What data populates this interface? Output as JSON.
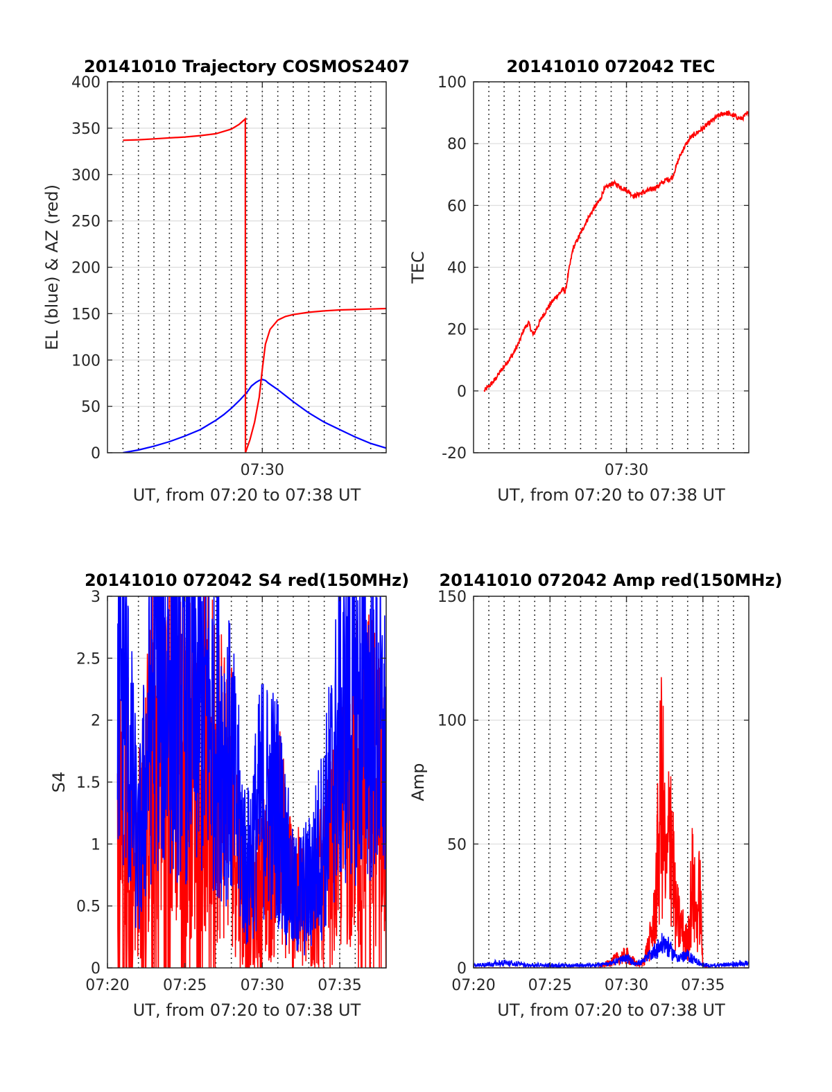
{
  "colors": {
    "el": "#0000ff",
    "az": "#ff0000",
    "tec": "#ff0000",
    "red_ch": "#ff0000",
    "blue_ch": "#0000ff",
    "grid": "#dcdcdc",
    "vgrid": "#000000"
  },
  "chart_data": [
    {
      "type": "line",
      "title": "20141010 Trajectory COSMOS2407",
      "xlabel": "UT, from 07:20 to 07:38 UT",
      "ylabel": "EL (blue) & AZ (red)",
      "xlim": [
        "07:20",
        "07:38"
      ],
      "ylim": [
        0,
        400
      ],
      "yticks": [
        0,
        50,
        100,
        150,
        200,
        250,
        300,
        350,
        400
      ],
      "xticks": [
        {
          "t": 10,
          "label": "07:30"
        }
      ],
      "grid": true,
      "series": [
        {
          "x": [
            1,
            2,
            3,
            4,
            5,
            6,
            7,
            7.5,
            8,
            8.5,
            9,
            9.3,
            9.6,
            9.8,
            10,
            10.2,
            10.4,
            11,
            12,
            13,
            14,
            15,
            16,
            17,
            18
          ],
          "y": [
            0,
            3,
            7,
            12,
            18,
            25,
            35,
            41,
            48,
            56,
            65,
            72,
            76,
            78,
            79,
            78,
            75,
            68,
            55,
            43,
            33,
            25,
            17,
            10,
            5
          ]
        },
        {
          "x": [
            1,
            2,
            3,
            4,
            5,
            6,
            7,
            8,
            8.5,
            8.9,
            8.91,
            9.2,
            9.5,
            9.8,
            10,
            10.2,
            10.5,
            11,
            11.5,
            12,
            13,
            14,
            15,
            16,
            17,
            18
          ],
          "y": [
            337,
            337.5,
            338.5,
            339.5,
            340.5,
            342,
            344,
            349,
            354,
            360,
            0,
            14,
            33,
            60,
            90,
            117,
            133,
            143,
            147,
            149,
            151.5,
            153,
            154,
            154.5,
            155,
            155.5
          ]
        }
      ]
    },
    {
      "type": "line",
      "title": "20141010 072042 TEC",
      "xlabel": "UT, from 07:20 to 07:38 UT",
      "ylabel": "TEC",
      "xlim": [
        "07:20",
        "07:38"
      ],
      "ylim": [
        -20,
        100
      ],
      "yticks": [
        -20,
        0,
        20,
        40,
        60,
        80,
        100
      ],
      "xticks": [
        {
          "t": 10,
          "label": "07:30"
        }
      ],
      "grid": true,
      "series": [
        {
          "x": [
            0.7,
            1.3,
            2,
            2.6,
            3,
            3.3,
            3.6,
            3.9,
            4.5,
            5,
            5.5,
            5.9,
            6,
            6.2,
            6.5,
            7,
            7.5,
            8,
            8.3,
            8.5,
            9,
            9.3,
            9.6,
            10,
            10.5,
            11,
            11.5,
            12,
            12.5,
            13,
            13.2,
            13.5,
            13.8,
            14.2,
            15,
            15.5,
            16,
            16.5,
            17,
            17.5,
            18
          ],
          "y": [
            0,
            3,
            8,
            12,
            16,
            20,
            22,
            18,
            24,
            28,
            31,
            33,
            32,
            38,
            46,
            51,
            56,
            60,
            62,
            65,
            67,
            67,
            66,
            65,
            63,
            64,
            65,
            66,
            68,
            69,
            72,
            76,
            79,
            82,
            85,
            87,
            89,
            90,
            89,
            88,
            90
          ]
        }
      ]
    },
    {
      "type": "line",
      "title": "20141010 072042 S4 red(150MHz)",
      "xlabel": "UT, from 07:20 to 07:38 UT",
      "ylabel": "S4",
      "xlim": [
        "07:20",
        "07:38"
      ],
      "ylim": [
        0,
        3
      ],
      "yticks": [
        0,
        0.5,
        1,
        1.5,
        2,
        2.5,
        3
      ],
      "ytick_labels": [
        "0",
        "0.5",
        "1",
        "1.5",
        "2",
        "2.5",
        "3"
      ],
      "xticks": [
        {
          "t": 0,
          "label": "07:20"
        },
        {
          "t": 5,
          "label": "07:25"
        },
        {
          "t": 10,
          "label": "07:30"
        },
        {
          "t": 15,
          "label": "07:35"
        }
      ],
      "grid": true,
      "series": [
        {
          "color": "red",
          "x": [
            1,
            2,
            3,
            4,
            5,
            6,
            7,
            8,
            9,
            10,
            11,
            12,
            13,
            14,
            15,
            16,
            17,
            18
          ],
          "y": [
            1.5,
            0.8,
            1.6,
            1.6,
            1.6,
            1.5,
            1.5,
            1.3,
            0.3,
            0.6,
            1.0,
            0.5,
            0.4,
            0.6,
            1.0,
            1.4,
            1.4,
            1.3
          ]
        },
        {
          "color": "blue",
          "x": [
            1,
            2,
            3,
            4,
            5,
            6,
            7,
            8,
            9,
            10,
            11,
            12,
            13,
            14,
            15,
            16,
            17,
            18
          ],
          "y": [
            2.2,
            0.8,
            2.2,
            2.1,
            2.0,
            2.0,
            1.8,
            1.5,
            0.7,
            1.3,
            1.2,
            0.5,
            0.6,
            1.0,
            1.8,
            2.0,
            1.9,
            1.6
          ]
        }
      ]
    },
    {
      "type": "line",
      "title": "20141010 072042 Amp red(150MHz)",
      "xlabel": "UT, from 07:20 to 07:38 UT",
      "ylabel": "Amp",
      "xlim": [
        "07:20",
        "07:38"
      ],
      "ylim": [
        0,
        150
      ],
      "yticks": [
        0,
        50,
        100,
        150
      ],
      "xticks": [
        {
          "t": 0,
          "label": "07:20"
        },
        {
          "t": 5,
          "label": "07:25"
        },
        {
          "t": 10,
          "label": "07:30"
        },
        {
          "t": 15,
          "label": "07:35"
        }
      ],
      "grid": true,
      "series": [
        {
          "color": "red",
          "x": [
            0,
            8,
            8.8,
            9.4,
            10,
            10.6,
            11,
            11.5,
            11.8,
            12,
            12.3,
            12.6,
            12.9,
            13.2,
            13.6,
            14,
            14.3,
            14.6,
            14.8,
            15,
            15.5,
            18
          ],
          "y": [
            0,
            0,
            3,
            6,
            8,
            3,
            2,
            15,
            30,
            60,
            120,
            55,
            100,
            35,
            25,
            15,
            55,
            30,
            50,
            2,
            0,
            0
          ]
        },
        {
          "color": "blue",
          "x": [
            0,
            2,
            4,
            6,
            8,
            9,
            10,
            10.5,
            11,
            11.5,
            12,
            12.5,
            13,
            13.5,
            14,
            14.5,
            15,
            16,
            18
          ],
          "y": [
            1,
            2,
            1,
            1,
            1,
            2,
            4,
            2,
            2,
            5,
            8,
            10,
            6,
            4,
            5,
            3,
            1,
            1,
            2
          ]
        }
      ]
    }
  ]
}
